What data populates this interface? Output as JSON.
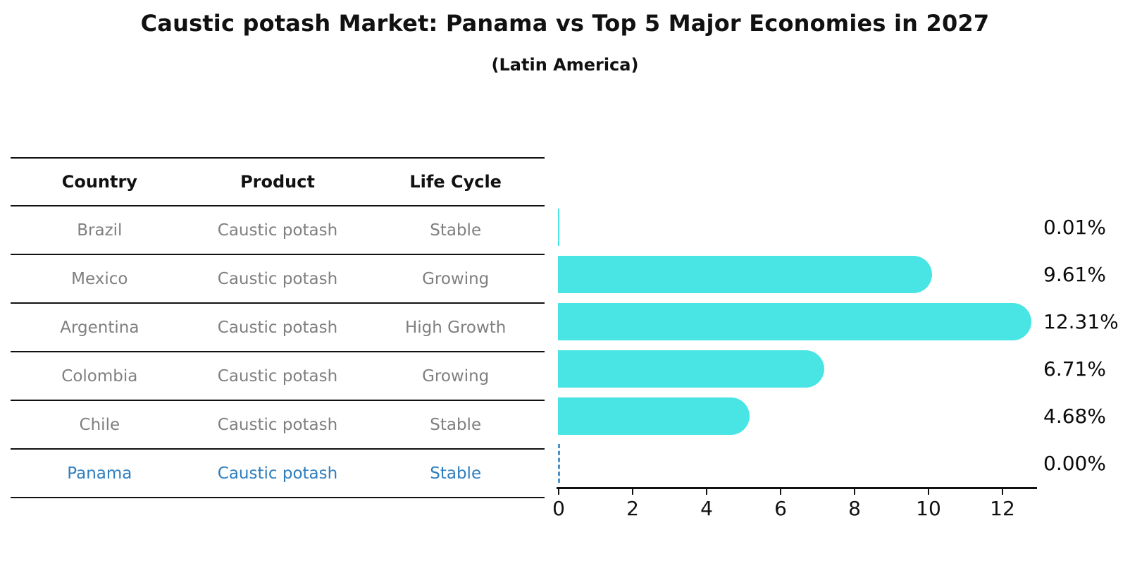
{
  "title": "Caustic potash Market: Panama vs Top 5 Major Economies in 2027",
  "subtitle": "(Latin America)",
  "table": {
    "headers": [
      "Country",
      "Product",
      "Life Cycle"
    ],
    "rows": [
      {
        "country": "Brazil",
        "product": "Caustic potash",
        "life_cycle": "Stable",
        "highlight": false
      },
      {
        "country": "Mexico",
        "product": "Caustic potash",
        "life_cycle": "Growing",
        "highlight": false
      },
      {
        "country": "Argentina",
        "product": "Caustic potash",
        "life_cycle": "High Growth",
        "highlight": false
      },
      {
        "country": "Colombia",
        "product": "Caustic potash",
        "life_cycle": "Growing",
        "highlight": false
      },
      {
        "country": "Chile",
        "product": "Caustic potash",
        "life_cycle": "Stable",
        "highlight": false
      },
      {
        "country": "Panama",
        "product": "Caustic potash",
        "life_cycle": "Stable",
        "highlight": true
      }
    ]
  },
  "chart_data": {
    "type": "bar",
    "orientation": "horizontal",
    "title": "Caustic potash Market: Panama vs Top 5 Major Economies in 2027",
    "subtitle": "(Latin America)",
    "categories": [
      "Brazil",
      "Mexico",
      "Argentina",
      "Colombia",
      "Chile",
      "Panama"
    ],
    "values": [
      0.01,
      9.61,
      12.31,
      6.71,
      4.68,
      0.0
    ],
    "value_labels": [
      "0.01%",
      "9.61%",
      "12.31%",
      "6.71%",
      "4.68%",
      "0.00%"
    ],
    "xticks": [
      "0",
      "2",
      "4",
      "6",
      "8",
      "10",
      "12"
    ],
    "xlim": [
      0,
      13
    ],
    "grid": false,
    "legend": false,
    "highlight_category": "Panama",
    "highlight_style": "dashed-zero-marker",
    "colors": {
      "bar": "#48e5e4",
      "highlight_text": "#2e7ebe",
      "zero_marker": "#4a90c9",
      "row_text": "#7f7f7f",
      "header_text": "#111111",
      "axis": "#111111"
    }
  }
}
